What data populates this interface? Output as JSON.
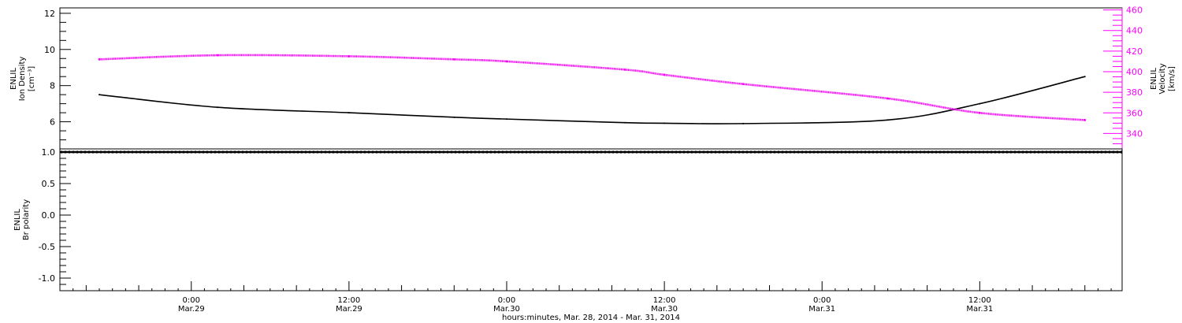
{
  "chart_data": [
    {
      "type": "line",
      "panel": "top",
      "x_unit": "datetime",
      "x": [
        "2014-03-28T17:00",
        "2014-03-29T02:00",
        "2014-03-29T12:00",
        "2014-03-29T20:00",
        "2014-03-30T00:00",
        "2014-03-30T09:00",
        "2014-03-30T12:00",
        "2014-03-30T18:00",
        "2014-03-31T05:00",
        "2014-03-31T12:00",
        "2014-03-31T20:00"
      ],
      "series": [
        {
          "axis": "left",
          "color": "#000000",
          "values": [
            7.5,
            6.8,
            6.5,
            6.25,
            6.15,
            5.95,
            5.92,
            5.9,
            6.1,
            7.0,
            8.5
          ]
        },
        {
          "axis": "right",
          "color": "#ff00ff",
          "values": [
            412,
            416,
            415,
            412,
            410,
            402,
            397,
            388,
            374,
            360,
            353
          ]
        }
      ],
      "ylabel_left": [
        "ENLIL",
        "Ion Density",
        "[cm⁻³]"
      ],
      "ylabel_right": [
        "ENLIL",
        "Velocity",
        "[km/s]"
      ],
      "ylim_left": [
        4.5,
        12.3
      ],
      "ylim_right": [
        325,
        462
      ],
      "yticks_left": [
        "6",
        "8",
        "10",
        "12"
      ],
      "yticks_right": [
        "340",
        "360",
        "380",
        "400",
        "420",
        "440",
        "460"
      ],
      "grid": false
    },
    {
      "type": "line",
      "panel": "bottom",
      "x_unit": "datetime",
      "x": [
        "2014-03-28T17:00",
        "2014-03-31T20:00"
      ],
      "series": [
        {
          "axis": "left",
          "color": "#000000",
          "values": [
            1.0,
            1.0
          ]
        }
      ],
      "ylabel_left": [
        "ENLIL",
        "Br polarity"
      ],
      "ylim_left": [
        -1.2,
        1.05
      ],
      "yticks_left": [
        "-1.0",
        "-0.5",
        "0.0",
        "0.5",
        "1.0"
      ],
      "xticks": [
        {
          "time": "0:00",
          "date": "Mar.29"
        },
        {
          "time": "12:00",
          "date": "Mar.29"
        },
        {
          "time": "0:00",
          "date": "Mar.30"
        },
        {
          "time": "12:00",
          "date": "Mar.30"
        },
        {
          "time": "0:00",
          "date": "Mar.31"
        },
        {
          "time": "12:00",
          "date": "Mar.31"
        }
      ],
      "xlabel": "hours:minutes, Mar. 28, 2014 - Mar. 31, 2014",
      "grid": false
    }
  ]
}
